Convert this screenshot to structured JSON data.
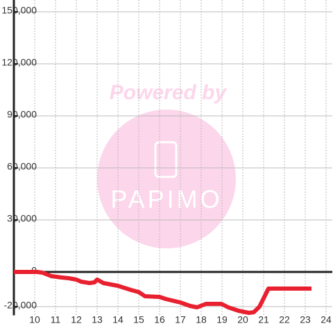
{
  "chart_data": {
    "type": "line",
    "x": [
      9,
      10.13,
      10.37,
      10.8,
      11.3,
      11.63,
      12,
      12.23,
      12.63,
      12.87,
      13,
      13.3,
      14,
      14.63,
      15,
      15.3,
      16,
      16.3,
      17,
      17.47,
      17.8,
      18.23,
      18.97,
      19.3,
      19.8,
      20.3,
      20.53,
      20.8,
      21,
      21.23,
      23.3
    ],
    "series": [
      {
        "color": "#e8202f",
        "values": [
          0,
          0,
          -400,
          -2400,
          -3200,
          -3600,
          -4400,
          -5600,
          -6400,
          -6000,
          -4400,
          -6400,
          -8000,
          -10400,
          -11600,
          -14000,
          -14400,
          -15600,
          -17600,
          -19600,
          -20400,
          -18400,
          -18400,
          -20400,
          -22400,
          -23600,
          -23200,
          -20000,
          -15200,
          -9600,
          -9600
        ]
      }
    ],
    "xlim": [
      9,
      24.3
    ],
    "xticks": [
      10,
      11,
      12,
      13,
      14,
      15,
      16,
      17,
      18,
      19,
      20,
      21,
      22,
      23,
      24
    ],
    "ylim": [
      -25000,
      155000
    ],
    "yticks": [
      {
        "value": -20000,
        "label": "-20,000"
      },
      0,
      {
        "value": 30000,
        "label": "30,000"
      },
      {
        "value": 60000,
        "label": "60,000"
      },
      {
        "value": 90000,
        "label": "90,000"
      },
      {
        "value": 120000,
        "label": "120,000"
      },
      {
        "value": 150000,
        "label": "150,000"
      }
    ],
    "grid": true
  },
  "watermark": {
    "line1": "Powered by",
    "logo": "PAPIMO"
  }
}
